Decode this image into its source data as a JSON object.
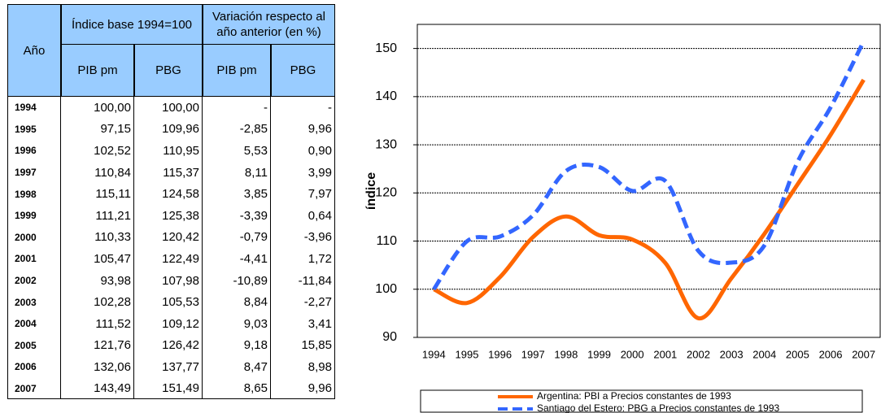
{
  "table": {
    "header": [
      "Año",
      "Índice base 1994=100",
      "Variación respecto al año anterior (en %)"
    ],
    "subheader": [
      "PIB pm",
      "PBG",
      "PIB pm",
      "PBG"
    ],
    "rows": [
      [
        "1994",
        "100,00",
        "100,00",
        "-",
        "-"
      ],
      [
        "1995",
        "97,15",
        "109,96",
        "-2,85",
        "9,96"
      ],
      [
        "1996",
        "102,52",
        "110,95",
        "5,53",
        "0,90"
      ],
      [
        "1997",
        "110,84",
        "115,37",
        "8,11",
        "3,99"
      ],
      [
        "1998",
        "115,11",
        "124,58",
        "3,85",
        "7,97"
      ],
      [
        "1999",
        "111,21",
        "125,38",
        "-3,39",
        "0,64"
      ],
      [
        "2000",
        "110,33",
        "120,42",
        "-0,79",
        "-3,96"
      ],
      [
        "2001",
        "105,47",
        "122,49",
        "-4,41",
        "1,72"
      ],
      [
        "2002",
        "93,98",
        "107,98",
        "-10,89",
        "-11,84"
      ],
      [
        "2003",
        "102,28",
        "105,53",
        "8,84",
        "-2,27"
      ],
      [
        "2004",
        "111,52",
        "109,12",
        "9,03",
        "3,41"
      ],
      [
        "2005",
        "121,76",
        "126,42",
        "9,18",
        "15,85"
      ],
      [
        "2006",
        "132,06",
        "137,77",
        "8,47",
        "8,98"
      ],
      [
        "2007",
        "143,49",
        "151,49",
        "8,65",
        "9,96"
      ]
    ]
  },
  "chart_data": {
    "type": "line",
    "y_label": "índice",
    "categories": [
      "1994",
      "1995",
      "1996",
      "1997",
      "1998",
      "1999",
      "2000",
      "2001",
      "2002",
      "2003",
      "2004",
      "2005",
      "2006",
      "2007"
    ],
    "series": [
      {
        "name": "Argentina: PBI a Precios constantes de 1993",
        "color": "#ff6600",
        "dashed": false,
        "values": [
          100,
          97.15,
          102.52,
          110.84,
          115.11,
          111.21,
          110.33,
          105.47,
          93.98,
          102.28,
          111.52,
          121.76,
          132.06,
          143.49
        ]
      },
      {
        "name": "Santiago del Estero: PBG a Precios constantes de 1993",
        "color": "#3366ff",
        "dashed": true,
        "values": [
          100,
          109.96,
          110.95,
          115.37,
          124.58,
          125.38,
          120.42,
          122.49,
          107.98,
          105.53,
          109.12,
          126.42,
          137.77,
          151.49
        ]
      }
    ],
    "ylim": [
      90,
      155
    ],
    "yticks": [
      90,
      100,
      110,
      120,
      130,
      140,
      150
    ],
    "grid": true,
    "legend": "bottom"
  }
}
